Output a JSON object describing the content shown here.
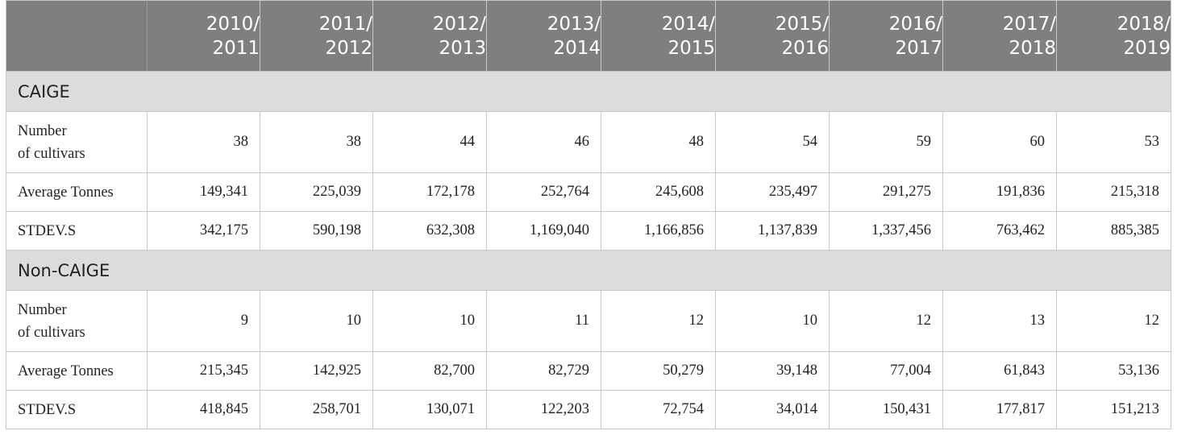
{
  "header": {
    "corner": "",
    "years": [
      [
        "2010/",
        "2011"
      ],
      [
        "2011/",
        "2012"
      ],
      [
        "2012/",
        "2013"
      ],
      [
        "2013/",
        "2014"
      ],
      [
        "2014/",
        "2015"
      ],
      [
        "2015/",
        "2016"
      ],
      [
        "2016/",
        "2017"
      ],
      [
        "2017/",
        "2018"
      ],
      [
        "2018/",
        "2019"
      ]
    ]
  },
  "sections": [
    {
      "title": "CAIGE",
      "rows": [
        {
          "label": [
            "Number",
            "of cultivars"
          ],
          "values": [
            "38",
            "38",
            "44",
            "46",
            "48",
            "54",
            "59",
            "60",
            "53"
          ]
        },
        {
          "label": [
            "Average Tonnes"
          ],
          "values": [
            "149,341",
            "225,039",
            "172,178",
            "252,764",
            "245,608",
            "235,497",
            "291,275",
            "191,836",
            "215,318"
          ]
        },
        {
          "label": [
            "STDEV.S"
          ],
          "values": [
            "342,175",
            "590,198",
            "632,308",
            "1,169,040",
            "1,166,856",
            "1,137,839",
            "1,337,456",
            "763,462",
            "885,385"
          ]
        }
      ]
    },
    {
      "title": "Non-CAIGE",
      "rows": [
        {
          "label": [
            "Number",
            "of cultivars"
          ],
          "values": [
            "9",
            "10",
            "10",
            "11",
            "12",
            "10",
            "12",
            "13",
            "12"
          ]
        },
        {
          "label": [
            "Average Tonnes"
          ],
          "values": [
            "215,345",
            "142,925",
            "82,700",
            "82,729",
            "50,279",
            "39,148",
            "77,004",
            "61,843",
            "53,136"
          ]
        },
        {
          "label": [
            "STDEV.S"
          ],
          "values": [
            "418,845",
            "258,701",
            "130,071",
            "122,203",
            "72,754",
            "34,014",
            "150,431",
            "177,817",
            "151,213"
          ]
        }
      ]
    }
  ]
}
